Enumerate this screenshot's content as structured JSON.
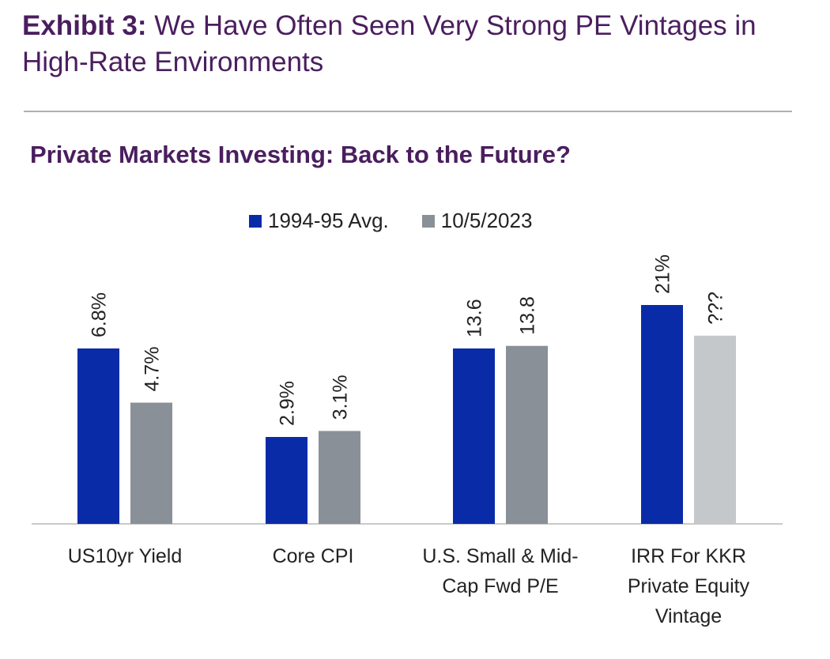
{
  "header": {
    "exhibit_label": "Exhibit 3:",
    "exhibit_title": "We Have Often Seen Very Strong PE Vintages in High-Rate Environments"
  },
  "chart_data": {
    "type": "bar",
    "title": "Private Markets Investing: Back to the Future?",
    "categories": [
      "US10yr Yield",
      "Core CPI",
      "U.S. Small & Mid-Cap Fwd P/E",
      "IRR For KKR Private Equity Vintage"
    ],
    "series": [
      {
        "name": "1994-95 Avg.",
        "color": "#0a2ba8",
        "values": [
          6.8,
          2.9,
          13.6,
          21
        ],
        "labels": [
          "6.8%",
          "2.9%",
          "13.6",
          "21%"
        ]
      },
      {
        "name": "10/5/2023",
        "color": "#8a9097",
        "values": [
          4.7,
          3.1,
          13.8,
          null
        ],
        "labels": [
          "4.7%",
          "3.1%",
          "13.8",
          "???"
        ],
        "placeholder_color": "#c5c8cb"
      }
    ],
    "legend_position": "top-center",
    "grid": false,
    "axis_visible": false
  }
}
